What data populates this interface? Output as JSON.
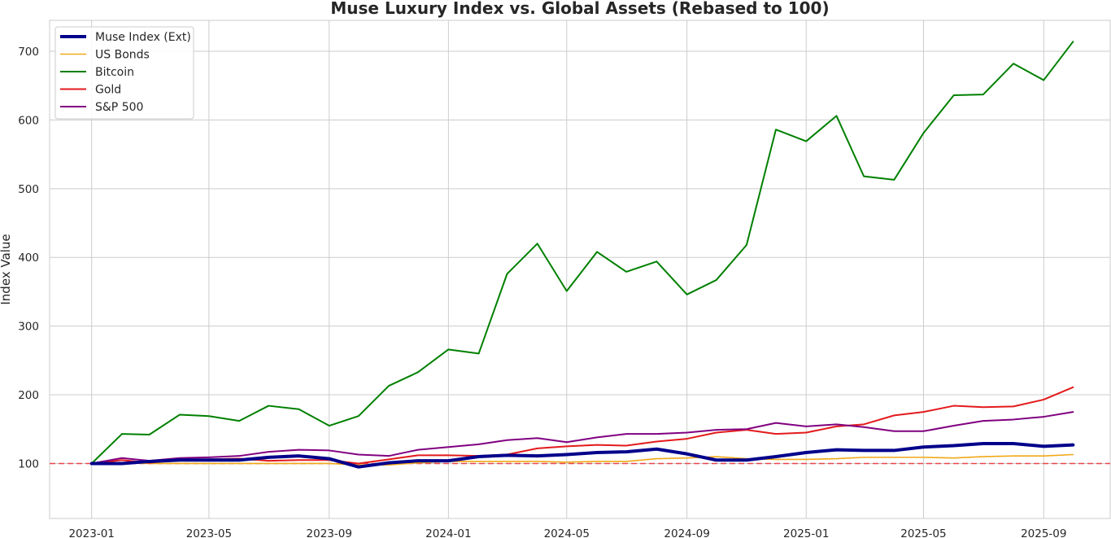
{
  "chart_data": {
    "type": "line",
    "title": "Muse Luxury Index vs. Global Assets (Rebased to 100)",
    "xlabel": "",
    "ylabel": "Index Value",
    "ylim": [
      20,
      745
    ],
    "xlim": [
      "2022-11-19",
      "2025-11-08"
    ],
    "x_ticks": [
      "2023-01",
      "2023-05",
      "2023-09",
      "2024-01",
      "2024-05",
      "2024-09",
      "2025-01",
      "2025-05",
      "2025-09"
    ],
    "y_ticks": [
      100,
      200,
      300,
      400,
      500,
      600,
      700
    ],
    "grid": true,
    "legend_position": "top-left",
    "reference_line": {
      "y": 100,
      "style": "dashed",
      "color": "#e8474b"
    },
    "x": [
      "2023-01",
      "2023-02",
      "2023-03",
      "2023-04",
      "2023-05",
      "2023-06",
      "2023-07",
      "2023-08",
      "2023-09",
      "2023-10",
      "2023-11",
      "2023-12",
      "2024-01",
      "2024-02",
      "2024-03",
      "2024-04",
      "2024-05",
      "2024-06",
      "2024-07",
      "2024-08",
      "2024-09",
      "2024-10",
      "2024-11",
      "2024-12",
      "2025-01",
      "2025-02",
      "2025-03",
      "2025-04",
      "2025-05",
      "2025-06",
      "2025-07",
      "2025-08",
      "2025-09",
      "2025-10"
    ],
    "series": [
      {
        "name": "Muse Index (Ext)",
        "color": "#00008b",
        "width": 4,
        "values": [
          100,
          100,
          103,
          105,
          105,
          105,
          109,
          111,
          107,
          95,
          101,
          104,
          104,
          110,
          112,
          111,
          113,
          116,
          117,
          121,
          114,
          105,
          105,
          110,
          116,
          120,
          119,
          119,
          124,
          126,
          129,
          129,
          125,
          127
        ]
      },
      {
        "name": "US Bonds",
        "color": "#f0a818",
        "width": 1.6,
        "values": [
          100,
          101,
          100,
          100,
          100,
          100,
          100,
          100,
          100,
          98,
          98,
          101,
          103,
          103,
          103,
          103,
          102,
          103,
          103,
          107,
          108,
          110,
          107,
          106,
          106,
          107,
          109,
          109,
          109,
          108,
          110,
          111,
          111,
          113
        ]
      },
      {
        "name": "Bitcoin",
        "color": "#008000",
        "width": 2,
        "values": [
          100,
          143,
          142,
          171,
          169,
          162,
          184,
          179,
          155,
          169,
          213,
          233,
          266,
          260,
          376,
          420,
          351,
          408,
          379,
          394,
          346,
          367,
          418,
          586,
          569,
          606,
          518,
          513,
          581,
          636,
          637,
          682,
          658,
          714
        ]
      },
      {
        "name": "Gold",
        "color": "#e31a1c",
        "width": 2,
        "values": [
          100,
          105,
          101,
          106,
          106,
          107,
          104,
          105,
          105,
          100,
          106,
          112,
          112,
          111,
          113,
          122,
          125,
          127,
          126,
          132,
          136,
          145,
          149,
          143,
          145,
          154,
          157,
          170,
          175,
          184,
          182,
          183,
          193,
          211
        ]
      },
      {
        "name": "S&P 500",
        "color": "#800080",
        "width": 2,
        "values": [
          100,
          108,
          104,
          108,
          109,
          111,
          117,
          120,
          119,
          113,
          111,
          120,
          124,
          128,
          134,
          137,
          131,
          138,
          143,
          143,
          145,
          149,
          150,
          159,
          154,
          157,
          153,
          147,
          147,
          155,
          162,
          164,
          168,
          175
        ]
      }
    ]
  }
}
